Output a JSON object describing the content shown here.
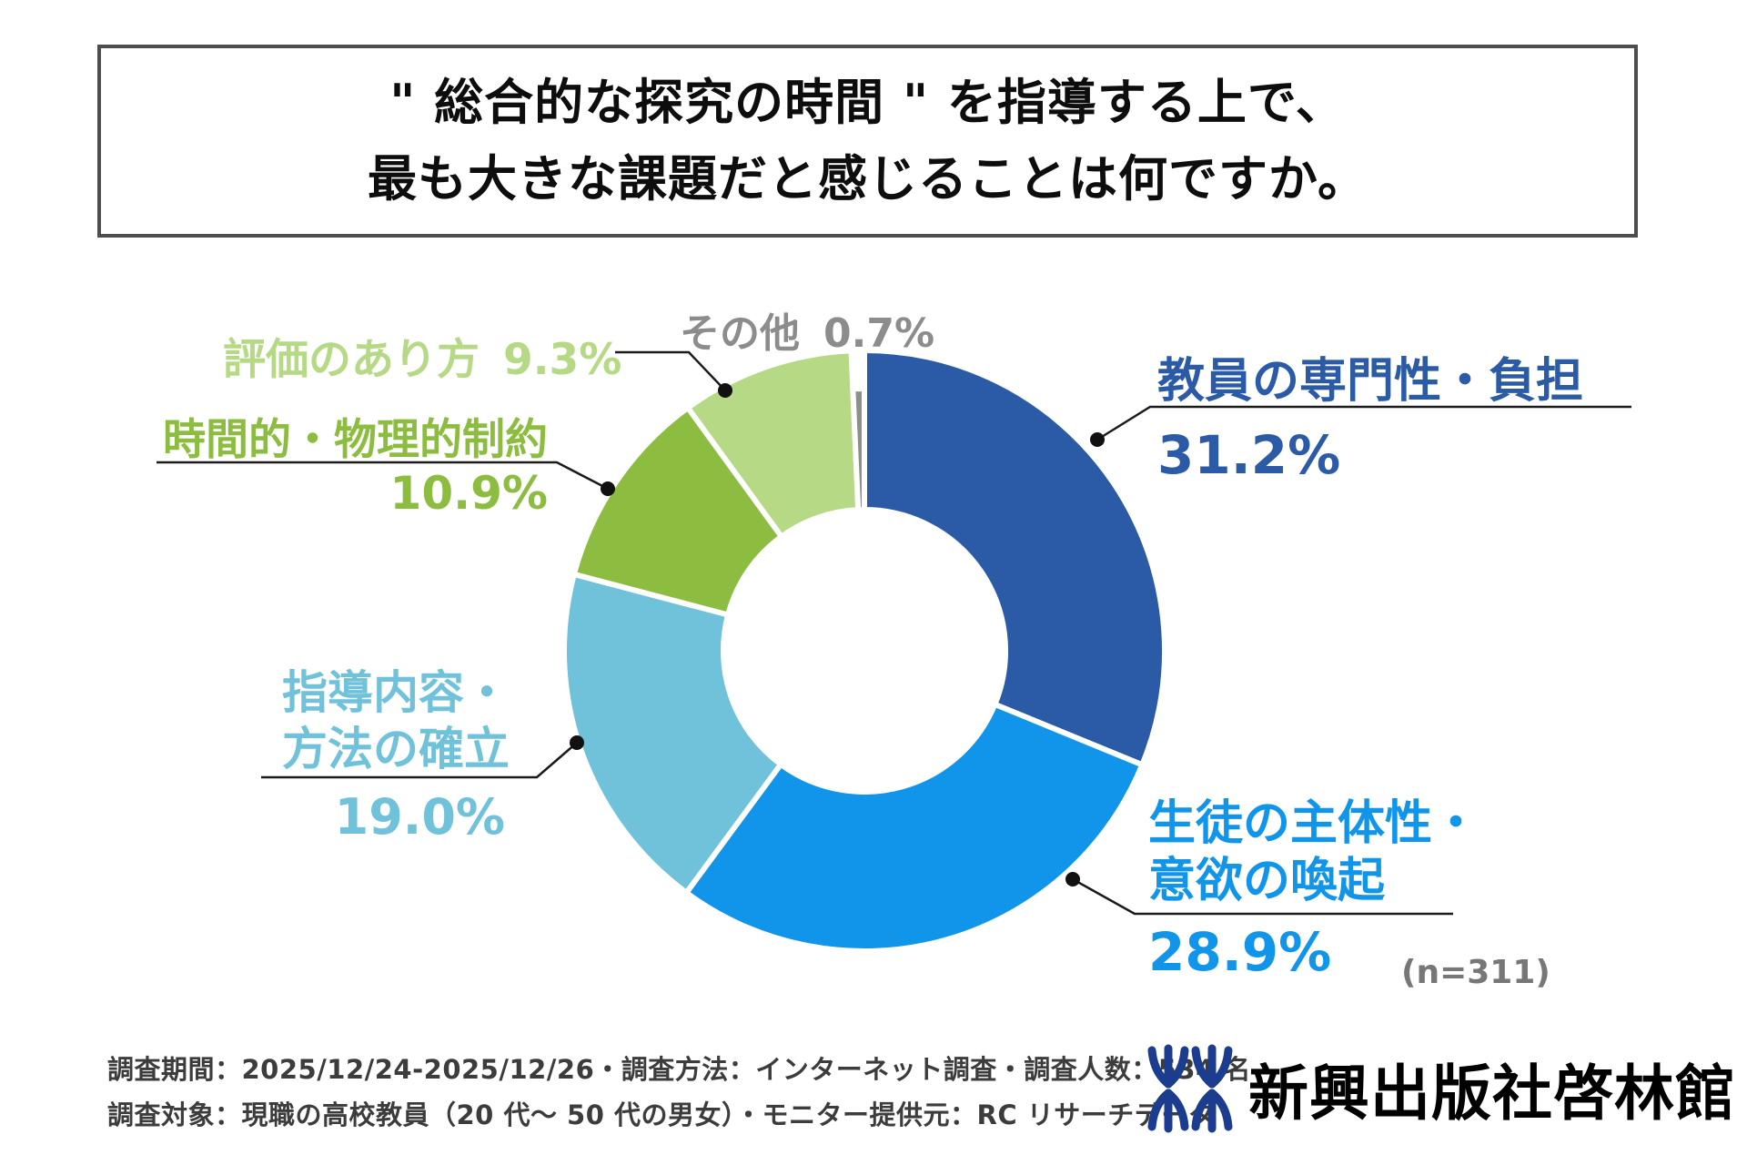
{
  "title": {
    "line1": "\" 総合的な探究の時間 \" を指導する上で、",
    "line2": "最も大きな課題だと感じることは何ですか。"
  },
  "chart_data": {
    "type": "pie",
    "donut": true,
    "title": "\"総合的な探究の時間\" を指導する上で、最も大きな課題だと感じることは何ですか。",
    "sample_note": "(n=311)",
    "start_angle_deg": 0,
    "direction": "clockwise",
    "legend_position": "around-chart",
    "segments": [
      {
        "label": "教員の専門性・負担",
        "value": 31.2,
        "display": "31.2%",
        "color": "#2b5aa6"
      },
      {
        "label": "生徒の主体性・意欲の喚起",
        "label_lines": [
          "生徒の主体性・",
          "意欲の喚起"
        ],
        "value": 28.9,
        "display": "28.9%",
        "color": "#1095ea"
      },
      {
        "label": "指導内容・方法の確立",
        "label_lines": [
          "指導内容・",
          "方法の確立"
        ],
        "value": 19.0,
        "display": "19.0%",
        "color": "#6fc2da"
      },
      {
        "label": "時間的・物理的制約",
        "value": 10.9,
        "display": "10.9%",
        "color": "#8cbd40"
      },
      {
        "label": "評価のあり方",
        "value": 9.3,
        "display": "9.3%",
        "color": "#b5d985"
      },
      {
        "label": "その他",
        "value": 0.7,
        "display": "0.7%",
        "color": "#8e8e8e"
      }
    ]
  },
  "footer": {
    "line1": "調査期間：2025/12/24-2025/12/26・調査方法：インターネット調査・調査人数：534 名",
    "line2": "調査対象：現職の高校教員（20 代～ 50 代の男女）・モニター提供元：RC リサーチデータ"
  },
  "logo": {
    "text": "新興出版社啓林館",
    "color": "#1c3d8f"
  }
}
